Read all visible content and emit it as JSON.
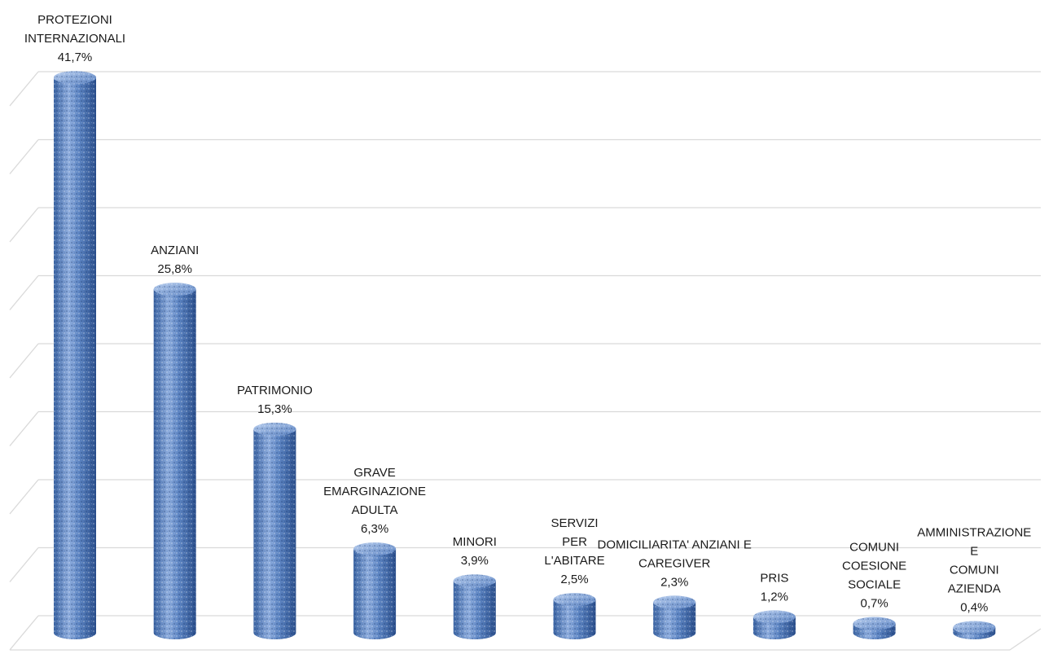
{
  "chart_data": {
    "type": "bar",
    "style": "3d-cylinder",
    "grid": true,
    "legend": "none",
    "ylim": [
      0,
      45
    ],
    "colors": {
      "bar": "#4a74b4",
      "bar_light": "#9fbbe3",
      "bar_dark": "#2a4f8a",
      "grid": "#d9d9d9"
    },
    "bars": [
      {
        "category": [
          "PROTEZIONI",
          "INTERNAZIONALI"
        ],
        "value": 41.7,
        "value_label": "41,7%"
      },
      {
        "category": [
          "ANZIANI"
        ],
        "value": 25.8,
        "value_label": "25,8%"
      },
      {
        "category": [
          "PATRIMONIO"
        ],
        "value": 15.3,
        "value_label": "15,3%"
      },
      {
        "category": [
          "GRAVE",
          "EMARGINAZIONE",
          "ADULTA"
        ],
        "value": 6.3,
        "value_label": "6,3%"
      },
      {
        "category": [
          "MINORI"
        ],
        "value": 3.9,
        "value_label": "3,9%"
      },
      {
        "category": [
          "SERVIZI",
          "PER",
          "L'ABITARE"
        ],
        "value": 2.5,
        "value_label": "2,5%"
      },
      {
        "category": [
          "DOMICILIARITA' ANZIANI E",
          "CAREGIVER"
        ],
        "value": 2.3,
        "value_label": "2,3%"
      },
      {
        "category": [
          "PRIS"
        ],
        "value": 1.2,
        "value_label": "1,2%"
      },
      {
        "category": [
          "COMUNI",
          "COESIONE",
          "SOCIALE"
        ],
        "value": 0.7,
        "value_label": "0,7%"
      },
      {
        "category": [
          "AMMINISTRAZIONE",
          "E",
          "COMUNI",
          "AZIENDA"
        ],
        "value": 0.4,
        "value_label": "0,4%"
      }
    ]
  }
}
